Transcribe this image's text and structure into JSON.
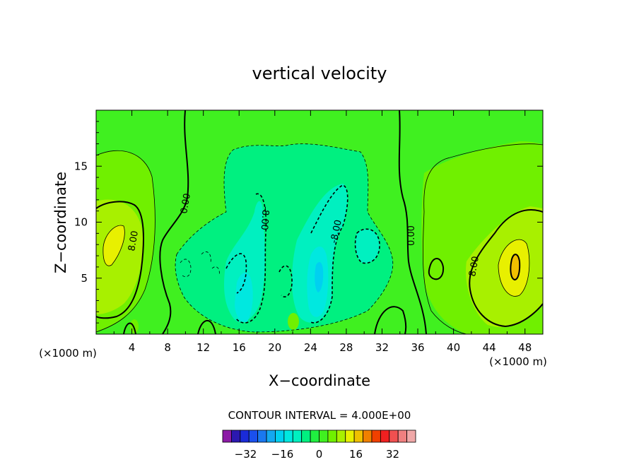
{
  "chart_data": {
    "type": "heatmap",
    "title": "vertical velocity",
    "xlabel": "X−coordinate",
    "ylabel": "Z−coordinate",
    "x_unit_left": "(×1000 m)",
    "x_unit_right": "(×1000 m)",
    "xlim": [
      0,
      50
    ],
    "ylim": [
      0,
      20
    ],
    "x_ticks": [
      "4",
      "8",
      "12",
      "16",
      "20",
      "24",
      "28",
      "32",
      "36",
      "40",
      "44",
      "48"
    ],
    "y_ticks": [
      "5",
      "10",
      "15"
    ],
    "contour_interval_text": "CONTOUR INTERVAL = 4.000E+00",
    "contour_labels": [
      "0.00",
      "0.00",
      "8.00",
      "8.00",
      "-8.00",
      "-8.00"
    ],
    "colorbar": {
      "levels": [
        -36,
        -32,
        -28,
        -24,
        -20,
        -16,
        -12,
        -8,
        -4,
        0,
        4,
        8,
        12,
        16,
        20,
        24,
        28,
        32,
        36
      ],
      "tick_labels": [
        "−32",
        "−16",
        "0",
        "16",
        "32"
      ],
      "colors": [
        "#8c1aa6",
        "#2b18b0",
        "#1a2bd8",
        "#1a50ee",
        "#1a78f0",
        "#14a8f0",
        "#00d0f0",
        "#00e8e0",
        "#00f0c0",
        "#00f080",
        "#20f040",
        "#40f020",
        "#70f000",
        "#a8f000",
        "#e8f000",
        "#f0c000",
        "#f08000",
        "#f04000",
        "#f02020",
        "#f05050",
        "#f08080",
        "#f0a8a8"
      ]
    },
    "field_extremes": {
      "positive_max": 24,
      "negative_min": -16
    }
  }
}
